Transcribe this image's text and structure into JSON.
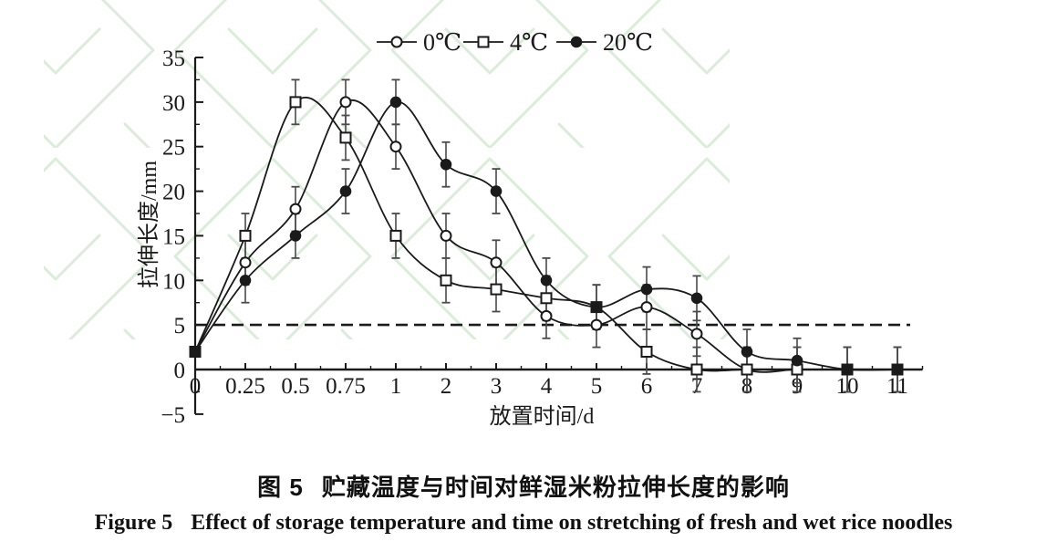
{
  "figure": {
    "captions": {
      "cn_prefix": "图 5",
      "cn_text": "贮藏温度与时间对鲜湿米粉拉伸长度的影响",
      "en_prefix": "Figure 5",
      "en_text": "Effect of storage temperature and time on stretching of fresh and wet rice noodles"
    }
  },
  "colors": {
    "line": "#1a1a1a",
    "error_bar": "#4a4a4a",
    "watermark": "#d9edd8",
    "text": "#1a1a1a"
  },
  "chart_data": {
    "type": "line",
    "xlabel": "放置时间/d",
    "ylabel": "拉伸长度/mm",
    "categories": [
      "0",
      "0.25",
      "0.5",
      "0.75",
      "1",
      "2",
      "3",
      "4",
      "5",
      "6",
      "7",
      "8",
      "9",
      "10",
      "11"
    ],
    "ylim": [
      -5,
      35
    ],
    "yticks": [
      -5,
      0,
      5,
      10,
      15,
      20,
      25,
      30,
      35
    ],
    "ytick_minor_step": 2.5,
    "grid": false,
    "legend_position": "top-center",
    "reference_line_y": 5,
    "reference_line_style": "dashed",
    "error_bar": 2.5,
    "series": [
      {
        "name": "0℃",
        "marker": "circle-open",
        "values": [
          2,
          12,
          18,
          30,
          25,
          15,
          12,
          6,
          5,
          7,
          4,
          0,
          0,
          0,
          0
        ]
      },
      {
        "name": "4℃",
        "marker": "square-open",
        "values": [
          2,
          15,
          30,
          26,
          15,
          10,
          9,
          8,
          7,
          2,
          0,
          0,
          0,
          0,
          0
        ]
      },
      {
        "name": "20℃",
        "marker": "circle-filled",
        "values": [
          2,
          10,
          15,
          20,
          30,
          23,
          20,
          10,
          7,
          9,
          8,
          2,
          1,
          0,
          0
        ]
      }
    ]
  }
}
